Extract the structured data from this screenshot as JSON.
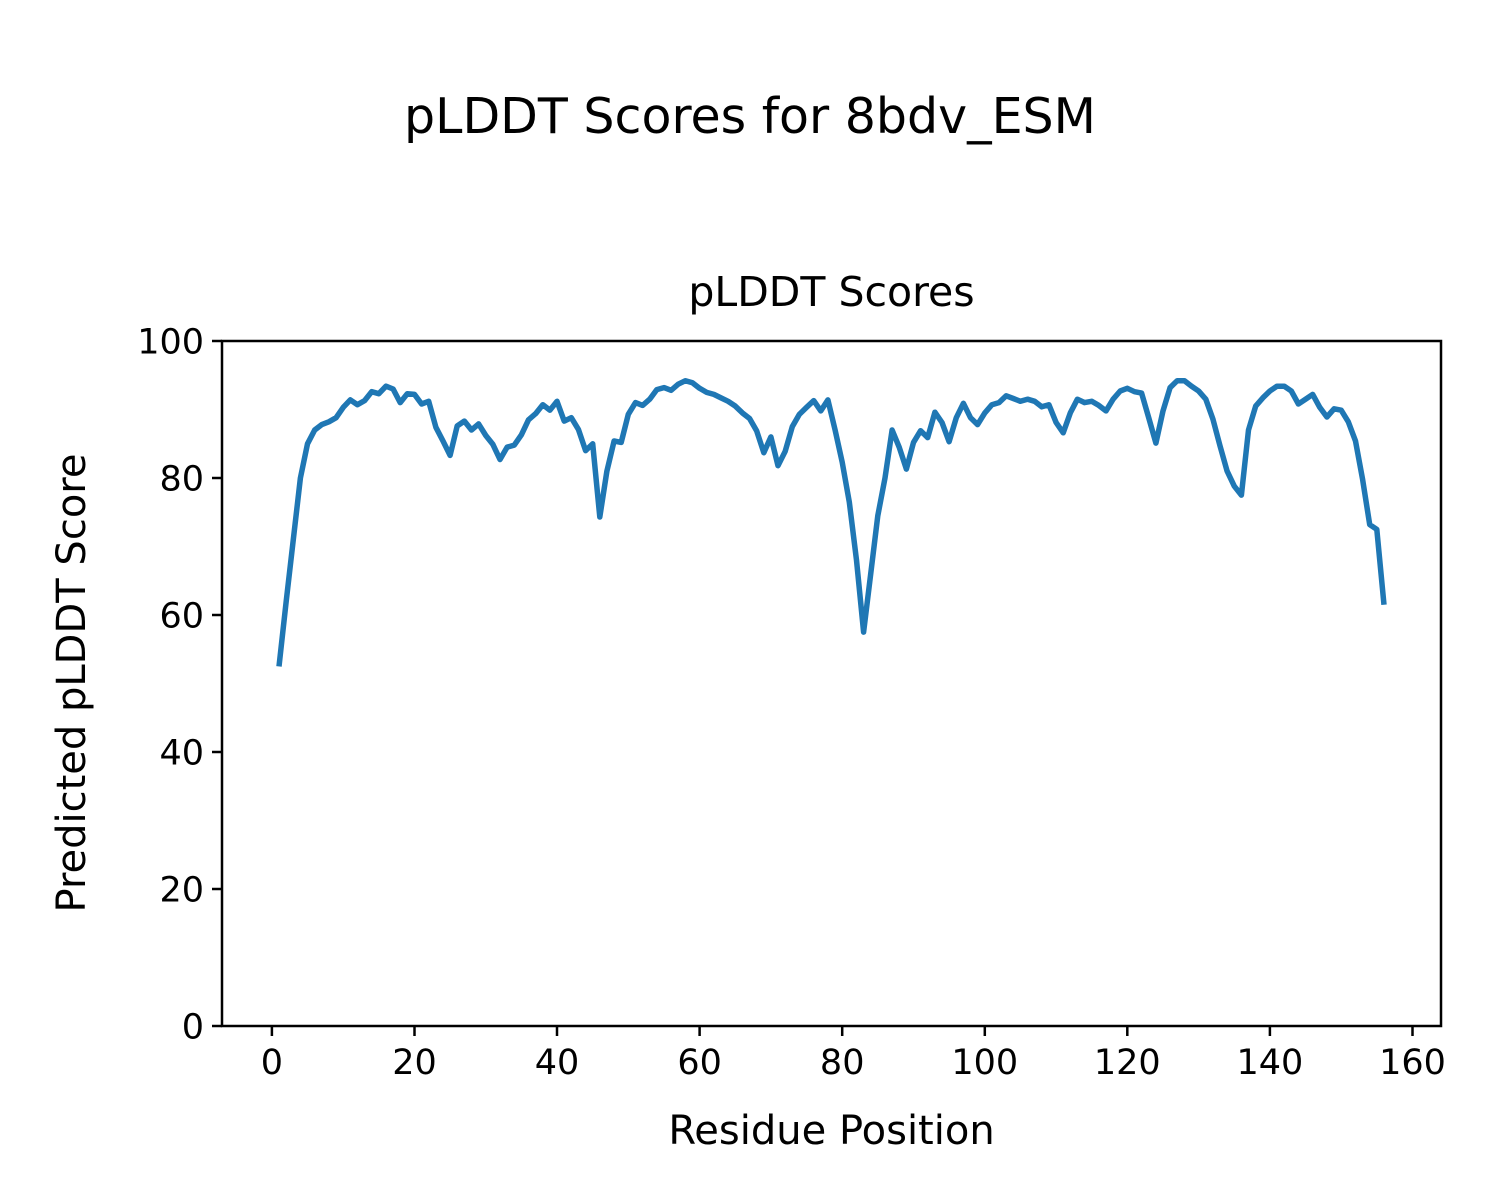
{
  "figure": {
    "suptitle": "pLDDT Scores for 8bdv_ESM",
    "background_color": "#ffffff",
    "text_color": "#000000"
  },
  "chart_data": {
    "type": "line",
    "title": "pLDDT Scores",
    "xlabel": "Residue Position",
    "ylabel": "Predicted pLDDT Score",
    "xlim": [
      -7,
      164
    ],
    "ylim": [
      0,
      100
    ],
    "xticks": [
      0,
      20,
      40,
      60,
      80,
      100,
      120,
      140,
      160
    ],
    "yticks": [
      0,
      20,
      40,
      60,
      80,
      100
    ],
    "grid": false,
    "legend_position": "none",
    "series": [
      {
        "name": "pLDDT",
        "color": "#1f77b4",
        "line_width": 5.5,
        "x_start": 1,
        "n_points": 156,
        "x": [
          1,
          2,
          3,
          4,
          5,
          6,
          7,
          8,
          9,
          10,
          11,
          12,
          13,
          14,
          15,
          16,
          17,
          18,
          19,
          20,
          21,
          22,
          23,
          24,
          25,
          26,
          27,
          28,
          29,
          30,
          31,
          32,
          33,
          34,
          35,
          36,
          37,
          38,
          39,
          40,
          41,
          42,
          43,
          44,
          45,
          46,
          47,
          48,
          49,
          50,
          51,
          52,
          53,
          54,
          55,
          56,
          57,
          58,
          59,
          60,
          61,
          62,
          63,
          64,
          65,
          66,
          67,
          68,
          69,
          70,
          71,
          72,
          73,
          74,
          75,
          76,
          77,
          78,
          79,
          80,
          81,
          82,
          83,
          84,
          85,
          86,
          87,
          88,
          89,
          90,
          91,
          92,
          93,
          94,
          95,
          96,
          97,
          98,
          99,
          100,
          101,
          102,
          103,
          104,
          105,
          106,
          107,
          108,
          109,
          110,
          111,
          112,
          113,
          114,
          115,
          116,
          117,
          118,
          119,
          120,
          121,
          122,
          123,
          124,
          125,
          126,
          127,
          128,
          129,
          130,
          131,
          132,
          133,
          134,
          135,
          136,
          137,
          138,
          139,
          140,
          141,
          142,
          143,
          144,
          145,
          146,
          147,
          148,
          149,
          150,
          151,
          152,
          153,
          154,
          155,
          156
        ],
        "values": [
          52.5,
          62,
          71,
          80,
          85,
          87,
          87.8,
          88.2,
          88.8,
          90.3,
          91.4,
          90.7,
          91.3,
          92.6,
          92.3,
          93.4,
          93,
          91,
          92.3,
          92.2,
          90.8,
          91.2,
          87.4,
          85.4,
          83.3,
          87.6,
          88.3,
          87,
          87.9,
          86.2,
          84.9,
          82.7,
          84.5,
          84.8,
          86.3,
          88.5,
          89.4,
          90.7,
          89.9,
          91.2,
          88.3,
          88.8,
          87.1,
          84,
          85,
          74.3,
          81,
          85.4,
          85.2,
          89.3,
          91,
          90.6,
          91.5,
          92.9,
          93.2,
          92.8,
          93.7,
          94.2,
          93.9,
          93.1,
          92.5,
          92.2,
          91.7,
          91.2,
          90.5,
          89.5,
          88.7,
          86.9,
          83.7,
          86,
          81.8,
          83.9,
          87.5,
          89.3,
          90.3,
          91.3,
          89.8,
          91.4,
          87,
          82.3,
          76.5,
          68,
          57.5,
          66,
          74.5,
          80,
          87,
          84.5,
          81.3,
          85.2,
          86.9,
          85.9,
          89.6,
          88.1,
          85.3,
          88.8,
          90.9,
          88.8,
          87.8,
          89.5,
          90.7,
          91,
          92,
          91.6,
          91.2,
          91.5,
          91.2,
          90.4,
          90.7,
          88.1,
          86.6,
          89.5,
          91.5,
          91,
          91.2,
          90.6,
          89.8,
          91.5,
          92.7,
          93.1,
          92.6,
          92.4,
          88.8,
          85.1,
          89.8,
          93.2,
          94.2,
          94.2,
          93.4,
          92.7,
          91.5,
          88.6,
          84.7,
          81,
          78.8,
          77.5,
          87,
          90.5,
          91.7,
          92.7,
          93.4,
          93.4,
          92.7,
          90.8,
          91.5,
          92.2,
          90.3,
          88.9,
          90.1,
          89.9,
          88.2,
          85.4,
          79.8,
          73.2,
          72.5,
          61.5
        ]
      }
    ]
  }
}
